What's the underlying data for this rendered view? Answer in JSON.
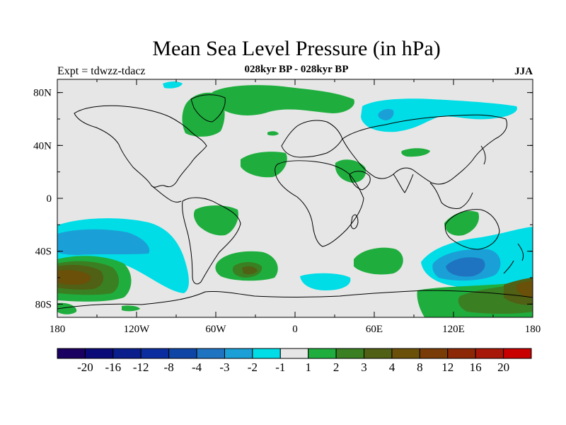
{
  "title": "Mean Sea Level Pressure (in hPa)",
  "subtitle": "028kyr BP - 028kyr BP",
  "expt_label": "Expt = tdwzz-tdacz",
  "season": "JJA",
  "colors": {
    "land_bg": "#e6e6e6",
    "coast": "#000000"
  },
  "lat_ticks": [
    {
      "value": 80,
      "label": "80N"
    },
    {
      "value": 40,
      "label": "40N"
    },
    {
      "value": 0,
      "label": "0"
    },
    {
      "value": -40,
      "label": "40S"
    },
    {
      "value": -80,
      "label": "80S"
    }
  ],
  "lon_ticks": [
    {
      "value": -180,
      "label": "180"
    },
    {
      "value": -120,
      "label": "120W"
    },
    {
      "value": -60,
      "label": "60W"
    },
    {
      "value": 0,
      "label": "0"
    },
    {
      "value": 60,
      "label": "60E"
    },
    {
      "value": 120,
      "label": "120E"
    },
    {
      "value": 180,
      "label": "180"
    }
  ],
  "colorbar": {
    "colors": [
      "#1a0060",
      "#0a0a78",
      "#0a1e8c",
      "#0c2da0",
      "#0f46a6",
      "#1f74c2",
      "#1aa0d6",
      "#00dde6",
      "#e6e6e6",
      "#1fae3e",
      "#3a8022",
      "#506014",
      "#6a5008",
      "#7a3c06",
      "#8c2806",
      "#a81808",
      "#c80000"
    ],
    "labels": [
      "-20",
      "-16",
      "-12",
      "-8",
      "-4",
      "-3",
      "-2",
      "-1",
      "1",
      "2",
      "3",
      "4",
      "8",
      "12",
      "16",
      "20"
    ]
  }
}
